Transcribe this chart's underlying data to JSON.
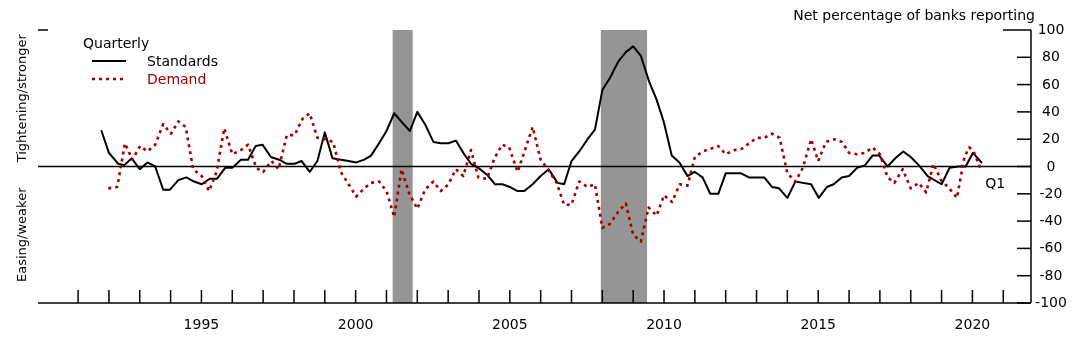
{
  "chart_data": {
    "type": "line",
    "ylabel": "Net percentage of banks reporting",
    "legend_title": "Quarterly",
    "legend": "top left",
    "annotations": [
      "Tightening/stronger",
      "Easing/weaker",
      {
        "text": "Q1",
        "x": 2020.29,
        "y": 3
      }
    ],
    "xlim": [
      1989.7,
      2021.9
    ],
    "xticks": [
      {
        "value": 1991,
        "label": null
      },
      {
        "value": 1992,
        "label": null
      },
      {
        "value": 1993,
        "label": null
      },
      {
        "value": 1994,
        "label": null
      },
      1995,
      {
        "value": 1996,
        "label": null
      },
      {
        "value": 1997,
        "label": null
      },
      {
        "value": 1998,
        "label": null
      },
      {
        "value": 1999,
        "label": null
      },
      2000,
      {
        "value": 2001,
        "label": null
      },
      {
        "value": 2002,
        "label": null
      },
      {
        "value": 2003,
        "label": null
      },
      {
        "value": 2004,
        "label": null
      },
      2005,
      {
        "value": 2006,
        "label": null
      },
      {
        "value": 2007,
        "label": null
      },
      {
        "value": 2008,
        "label": null
      },
      {
        "value": 2009,
        "label": null
      },
      2010,
      {
        "value": 2011,
        "label": null
      },
      {
        "value": 2012,
        "label": null
      },
      {
        "value": 2013,
        "label": null
      },
      {
        "value": 2014,
        "label": null
      },
      2015,
      {
        "value": 2016,
        "label": null
      },
      {
        "value": 2017,
        "label": null
      },
      {
        "value": 2018,
        "label": null
      },
      {
        "value": 2019,
        "label": null
      },
      2020,
      {
        "value": 2021,
        "label": null
      }
    ],
    "ylim": [
      -100,
      100
    ],
    "yticks": [
      -100,
      -80,
      -60,
      -40,
      -20,
      0,
      20,
      40,
      60,
      80,
      100
    ],
    "grid": false,
    "ref_lines": [
      {
        "axis": "y",
        "value": 0,
        "color": "#000000"
      }
    ],
    "bands": [
      {
        "axis": "x",
        "from": 2001.2,
        "to": 2001.85,
        "color": "#959595"
      },
      {
        "axis": "x",
        "from": 2007.95,
        "to": 2009.45,
        "color": "#959595"
      }
    ],
    "series": [
      {
        "name": "Standards",
        "color": "#000000",
        "line_style": "solid",
        "x": [
          1991.76,
          1992.0,
          1992.3,
          1992.5,
          1992.74,
          1993.0,
          1993.25,
          1993.5,
          1993.76,
          1993.98,
          1994.25,
          1994.51,
          1994.76,
          1995.01,
          1995.27,
          1995.5,
          1995.77,
          1996.0,
          1996.28,
          1996.51,
          1996.76,
          1996.98,
          1997.25,
          1997.52,
          1997.77,
          1998.02,
          1998.25,
          1998.51,
          1998.76,
          1999.0,
          1999.25,
          1999.52,
          1999.77,
          2000.02,
          2000.28,
          2000.5,
          2000.76,
          2001.0,
          2001.25,
          2001.52,
          2001.76,
          2002.0,
          2002.25,
          2002.52,
          2002.76,
          2003.01,
          2003.25,
          2003.49,
          2003.74,
          2003.98,
          2004.26,
          2004.52,
          2004.76,
          2005.0,
          2005.25,
          2005.47,
          2005.74,
          2006.0,
          2006.26,
          2006.55,
          2006.76,
          2007.0,
          2007.25,
          2007.52,
          2007.76,
          2008.0,
          2008.25,
          2008.52,
          2008.77,
          2009.0,
          2009.25,
          2009.52,
          2009.76,
          2010.0,
          2010.25,
          2010.5,
          2010.76,
          2011.0,
          2011.25,
          2011.5,
          2011.76,
          2012.0,
          2012.28,
          2012.5,
          2012.75,
          2013.0,
          2013.25,
          2013.5,
          2013.73,
          2014.0,
          2014.26,
          2014.5,
          2014.77,
          2015.02,
          2015.28,
          2015.5,
          2015.76,
          2016.0,
          2016.26,
          2016.52,
          2016.76,
          2016.98,
          2017.25,
          2017.5,
          2017.76,
          2018.0,
          2018.26,
          2018.55,
          2019.0,
          2019.26,
          2019.53,
          2019.78,
          2020.02,
          2020.29
        ],
        "values": [
          26,
          10,
          2,
          1,
          6,
          -2,
          3,
          0,
          -17,
          -17,
          -10,
          -8,
          -11,
          -13,
          -9,
          -9,
          -1,
          -1,
          5,
          5,
          15,
          16,
          7,
          5,
          2,
          2,
          4,
          -4,
          4,
          25,
          6,
          5,
          4,
          3,
          5,
          8,
          17,
          26,
          39,
          32,
          26,
          40,
          31,
          18,
          17,
          17,
          19,
          10,
          2,
          -1,
          -6,
          -13,
          -13,
          -15,
          -18,
          -18,
          -13,
          -7,
          -2,
          -12,
          -13,
          4,
          11,
          20,
          27,
          56,
          65,
          77,
          84,
          88,
          81,
          62,
          49,
          32,
          8,
          3,
          -7,
          -4,
          -8,
          -20,
          -20,
          -5,
          -5,
          -5,
          -8,
          -8,
          -8,
          -15,
          -16,
          -23,
          -11,
          -12,
          -13,
          -23,
          -15,
          -13,
          -8,
          -7,
          -1,
          1,
          8,
          8,
          0,
          6,
          11,
          7,
          1,
          -7,
          -13,
          -1,
          0,
          0,
          10,
          3
        ]
      },
      {
        "name": "Demand",
        "color": "#a00000",
        "line_style": "dotted",
        "x": [
          1991.98,
          1992.27,
          1992.52,
          1992.76,
          1993.01,
          1993.25,
          1993.5,
          1993.76,
          1994.01,
          1994.25,
          1994.49,
          1994.73,
          1995.01,
          1995.25,
          1995.49,
          1995.74,
          1996.0,
          1996.28,
          1996.51,
          1996.78,
          1997.0,
          1997.27,
          1997.5,
          1997.77,
          1998.02,
          1998.28,
          1998.51,
          1998.76,
          1999.0,
          1999.27,
          1999.52,
          1999.77,
          2000.02,
          2000.28,
          2000.5,
          2000.76,
          2001.0,
          2001.25,
          2001.49,
          2001.74,
          2002.0,
          2002.25,
          2002.52,
          2002.76,
          2003.01,
          2003.25,
          2003.49,
          2003.74,
          2003.98,
          2004.26,
          2004.5,
          2004.75,
          2004.98,
          2005.25,
          2005.49,
          2005.74,
          2006.0,
          2006.26,
          2006.52,
          2006.76,
          2007.0,
          2007.25,
          2007.52,
          2007.76,
          2008.0,
          2008.25,
          2008.52,
          2008.76,
          2009.0,
          2009.25,
          2009.5,
          2009.76,
          2010.0,
          2010.26,
          2010.51,
          2010.76,
          2011.0,
          2011.26,
          2011.5,
          2011.76,
          2012.0,
          2012.28,
          2012.52,
          2012.76,
          2013.0,
          2013.25,
          2013.5,
          2013.75,
          2014.0,
          2014.26,
          2014.5,
          2014.77,
          2015.0,
          2015.25,
          2015.52,
          2015.77,
          2016.0,
          2016.26,
          2016.52,
          2016.76,
          2017.0,
          2017.25,
          2017.47,
          2017.74,
          2018.0,
          2018.26,
          2018.5,
          2018.74,
          2018.98,
          2019.25,
          2019.5,
          2019.74,
          2019.9,
          2020.04,
          2020.29
        ],
        "values": [
          -16,
          -15,
          17,
          5,
          15,
          11,
          16,
          31,
          24,
          33,
          29,
          -2,
          -7,
          -18,
          -4,
          28,
          9,
          12,
          16,
          -1,
          -4,
          4,
          -2,
          23,
          23,
          35,
          39,
          21,
          20,
          18,
          -4,
          -13,
          -22,
          -16,
          -12,
          -11,
          -18,
          -37,
          -2,
          -20,
          -31,
          -17,
          -11,
          -18,
          -13,
          -2,
          -7,
          12,
          -8,
          -9,
          6,
          16,
          14,
          -4,
          12,
          29,
          5,
          -3,
          -12,
          -28,
          -28,
          -11,
          -15,
          -13,
          -45,
          -42,
          -33,
          -27,
          -50,
          -55,
          -30,
          -36,
          -21,
          -26,
          -13,
          -14,
          7,
          11,
          13,
          15,
          9,
          12,
          13,
          17,
          21,
          21,
          24,
          21,
          -5,
          -11,
          -1,
          20,
          4,
          18,
          20,
          18,
          10,
          9,
          10,
          14,
          9,
          -8,
          -12,
          -2,
          -16,
          -12,
          -19,
          2,
          -10,
          -16,
          -23,
          7,
          14,
          11,
          -3
        ]
      }
    ]
  }
}
